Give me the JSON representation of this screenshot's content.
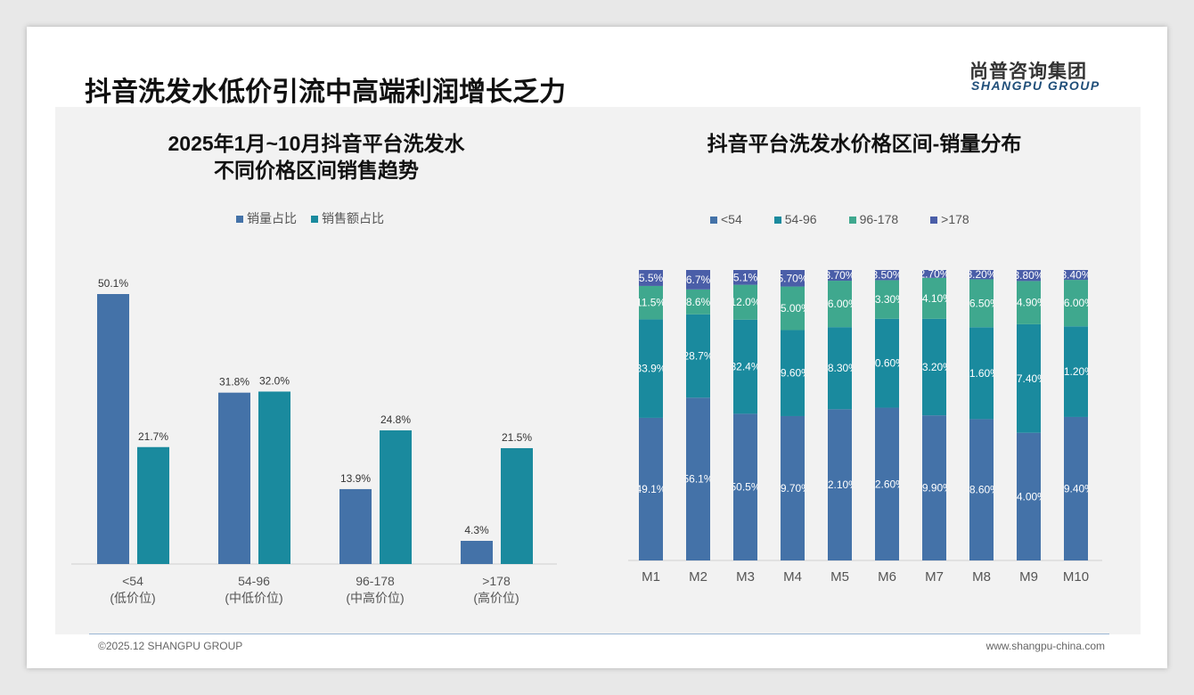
{
  "header": {
    "title": "抖音洗发水低价引流中高端利润增长乏力",
    "logo_cn": "尚普咨询集团",
    "logo_en": "SHANGPU GROUP"
  },
  "footer": {
    "copyright": "©2025.12 SHANGPU GROUP",
    "website": "www.shangpu-china.com"
  },
  "colors": {
    "c1": "#4472a8",
    "c2": "#1a8a9e",
    "c3": "#3fa88e",
    "c4": "#4a5ea8"
  },
  "chart_data": [
    {
      "type": "bar",
      "title_line1": "2025年1月~10月抖音平台洗发水",
      "title_line2": "不同价格区间销售趋势",
      "categories": [
        "<54",
        "54-96",
        "96-178",
        ">178"
      ],
      "category_sublabels": [
        "(低价位)",
        "(中低价位)",
        "(中高价位)",
        "(高价位)"
      ],
      "series": [
        {
          "name": "销量占比",
          "values": [
            50.1,
            31.8,
            13.9,
            4.3
          ]
        },
        {
          "name": "销售额占比",
          "values": [
            21.7,
            32.0,
            24.8,
            21.5
          ]
        }
      ],
      "unit": "%",
      "ylim": [
        0,
        55
      ]
    },
    {
      "type": "bar",
      "stacked": true,
      "title": "抖音平台洗发水价格区间-销量分布",
      "categories": [
        "M1",
        "M2",
        "M3",
        "M4",
        "M5",
        "M6",
        "M7",
        "M8",
        "M9",
        "M10"
      ],
      "series": [
        {
          "name": "<54",
          "labels": [
            "49.1%",
            "56.1%",
            "50.5%",
            "49.70%",
            "52.10%",
            "52.60%",
            "49.90%",
            "48.60%",
            "44.00%",
            "49.40%"
          ],
          "values": [
            49.1,
            56.1,
            50.5,
            49.7,
            52.1,
            52.6,
            49.9,
            48.6,
            44.0,
            49.4
          ]
        },
        {
          "name": "54-96",
          "labels": [
            "33.9%",
            "28.7%",
            "32.4%",
            "29.60%",
            "28.30%",
            "30.60%",
            "33.20%",
            "31.60%",
            "37.40%",
            "31.20%"
          ],
          "values": [
            33.9,
            28.7,
            32.4,
            29.6,
            28.3,
            30.6,
            33.2,
            31.6,
            37.4,
            31.2
          ]
        },
        {
          "name": "96-178",
          "labels": [
            "11.5%",
            "8.6%",
            "12.0%",
            "15.00%",
            "16.00%",
            "13.30%",
            "14.10%",
            "16.50%",
            "14.90%",
            "16.00%"
          ],
          "values": [
            11.5,
            8.6,
            12.0,
            15.0,
            16.0,
            13.3,
            14.1,
            16.5,
            14.9,
            16.0
          ]
        },
        {
          "name": ">178",
          "labels": [
            "5.5%",
            "6.7%",
            "5.1%",
            "5.70%",
            "3.70%",
            "3.50%",
            "2.70%",
            "3.20%",
            "3.80%",
            "3.40%"
          ],
          "values": [
            5.5,
            6.7,
            5.1,
            5.7,
            3.7,
            3.5,
            2.7,
            3.2,
            3.8,
            3.4
          ]
        }
      ],
      "ylim": [
        0,
        100
      ]
    }
  ]
}
